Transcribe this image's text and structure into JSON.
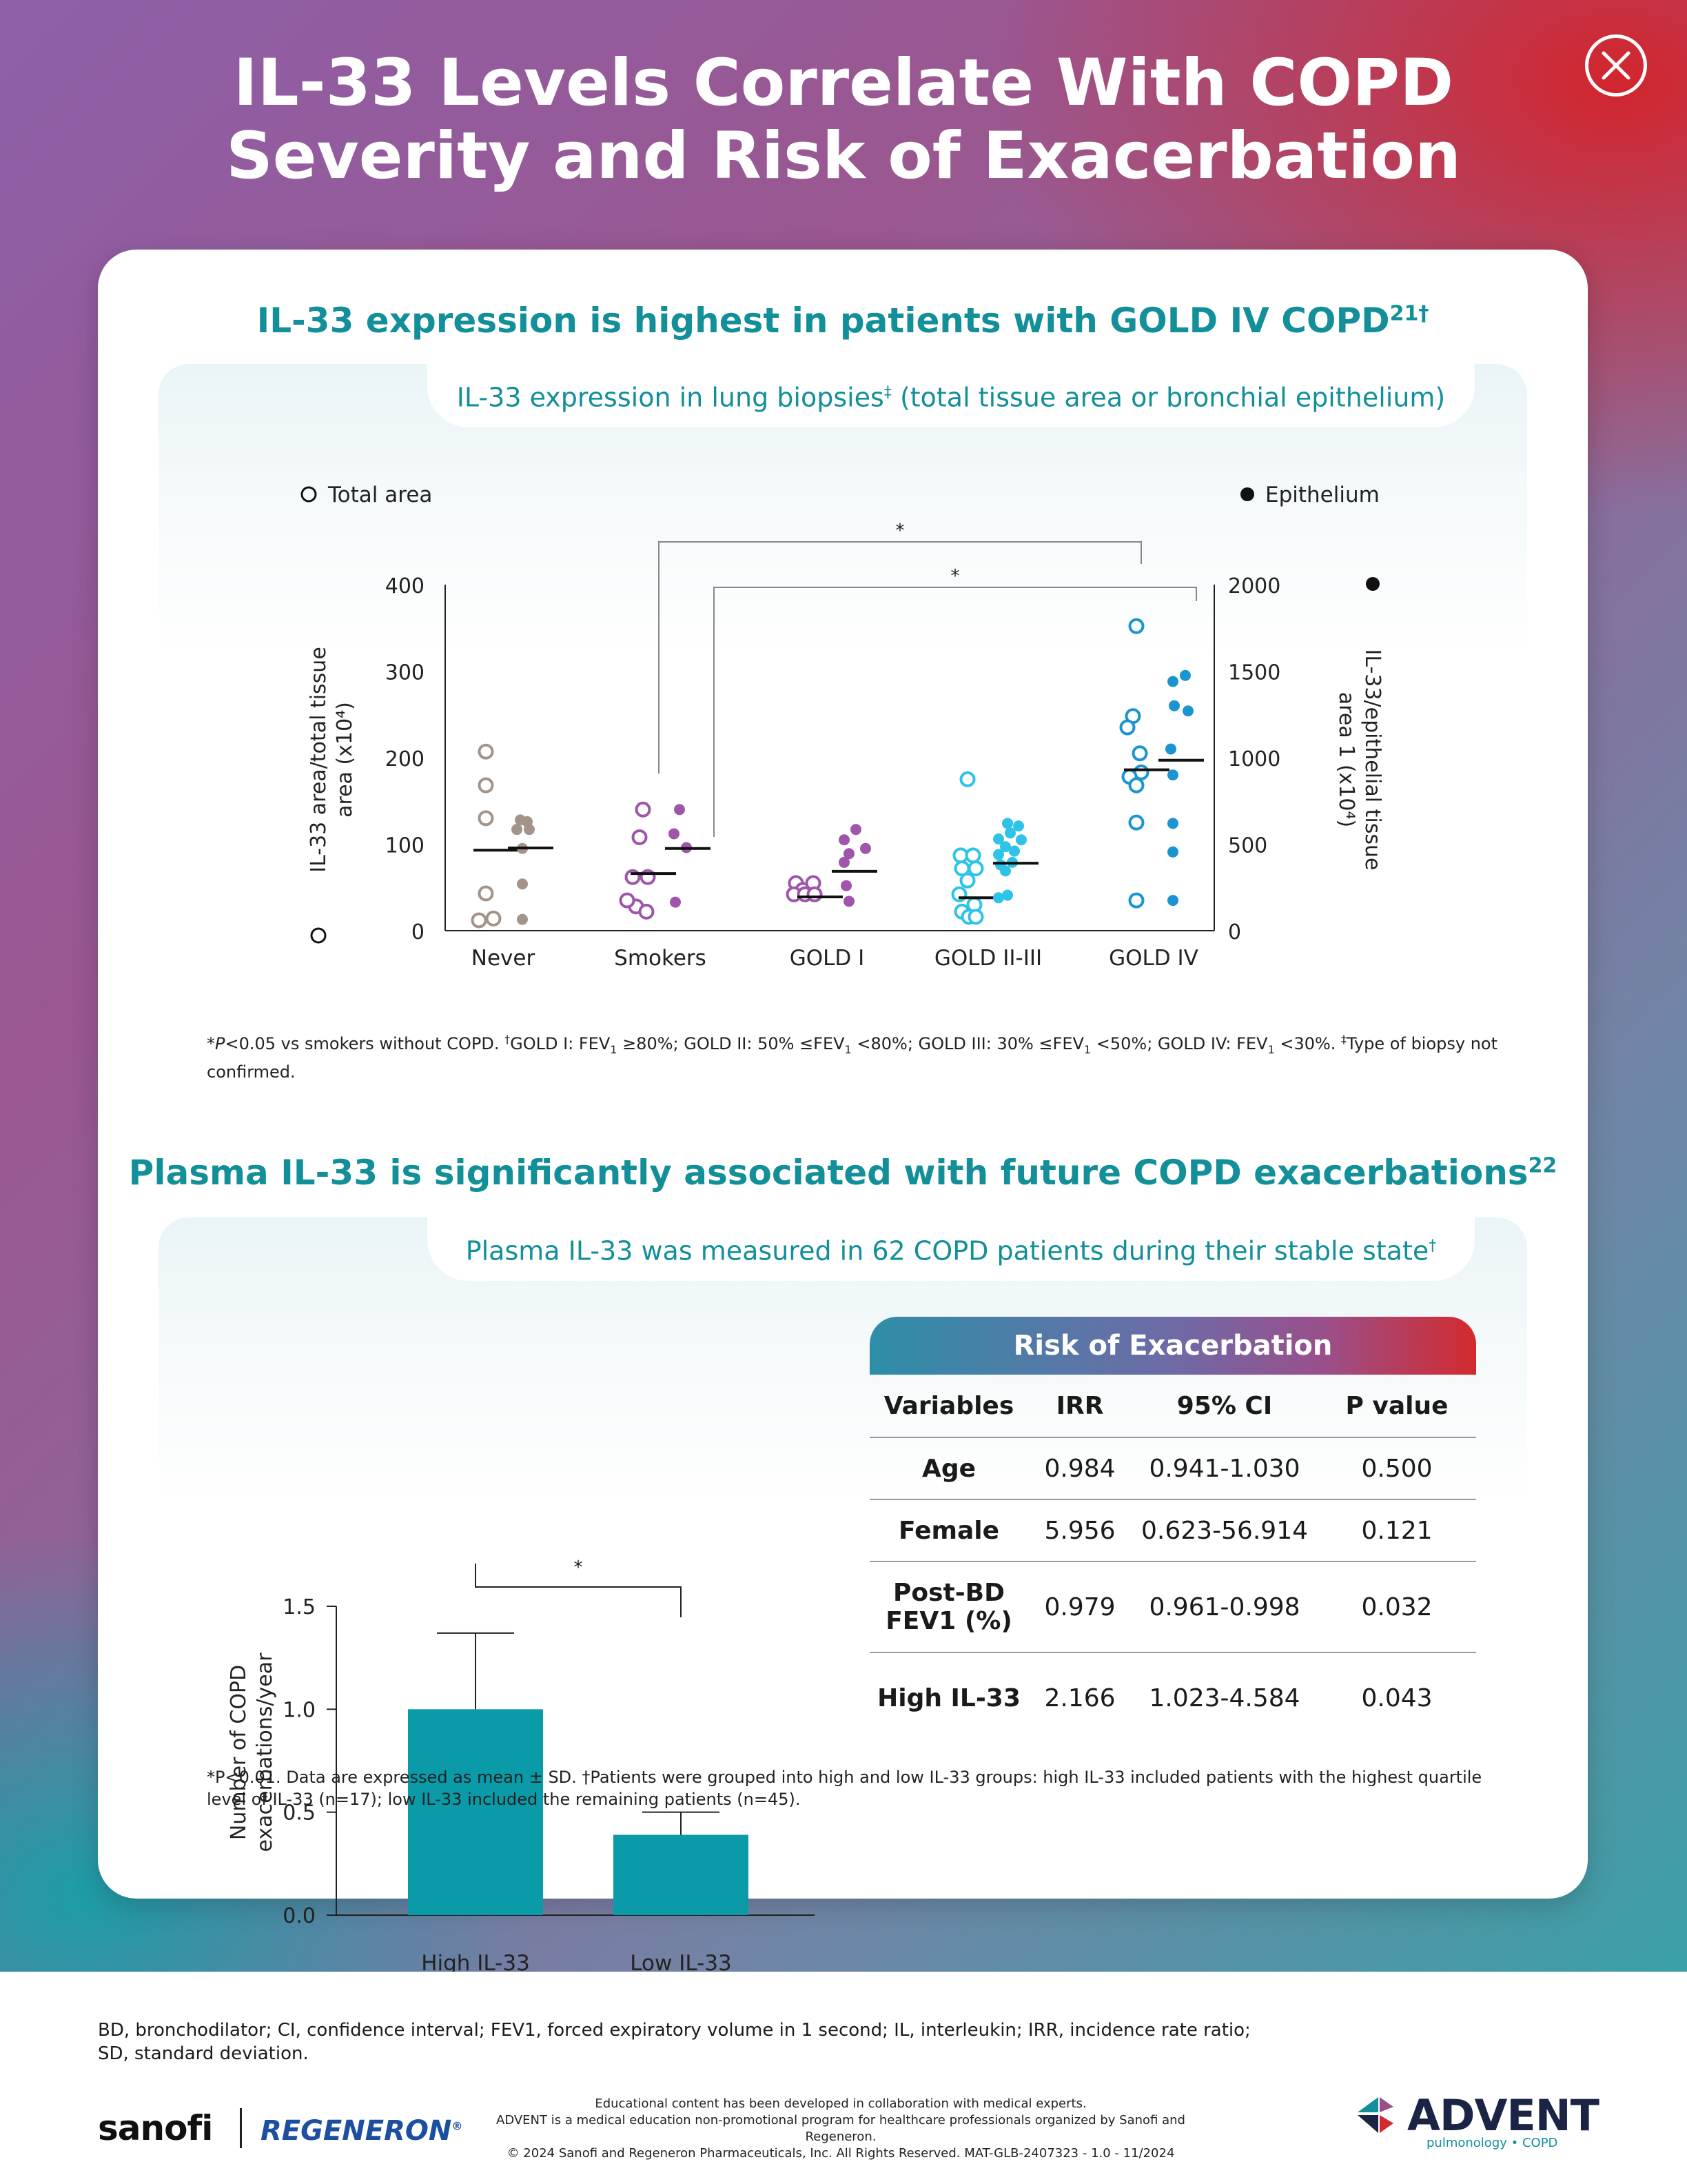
{
  "header": {
    "title_line1": "IL-33 Levels Correlate With COPD",
    "title_line2": "Severity and Risk of Exacerbation"
  },
  "section1": {
    "title": "IL-33 expression is highest in patients with GOLD IV COPD",
    "title_sup": "21†",
    "pill_text": "IL-33 expression in lung biopsies",
    "pill_sup": "‡",
    "pill_text2": " (total tissue area or bronchial epithelium)",
    "footnote": "*P<0.05 vs smokers without COPD. †GOLD I: FEV1 ≥80%; GOLD II: 50% ≤FEV1 <80%; GOLD III: 30% ≤FEV1 <50%; GOLD IV: FEV1 <30%. ‡Type of biopsy not confirmed."
  },
  "section2": {
    "title": "Plasma IL-33 is significantly associated with future COPD exacerbations",
    "title_sup": "22",
    "pill_text": "Plasma IL-33 was measured in 62 COPD patients during their stable state",
    "pill_sup": "†",
    "footnote_line1": "*P<0.01. Data are expressed as mean ± SD. †Patients were grouped into high and low IL-33 groups: high IL-33 included patients with the highest quartile",
    "footnote_line2": "level of IL-33 (n=17); low IL-33 included the remaining patients (n=45)."
  },
  "chart_data": [
    {
      "type": "scatter",
      "legend": [
        "Total area",
        "Epithelium"
      ],
      "categories": [
        "Never Smokers",
        "Smokers",
        "GOLD I",
        "GOLD II-III",
        "GOLD IV"
      ],
      "category_label_lines": [
        [
          "Never",
          "Smokers"
        ],
        [
          "Smokers"
        ],
        [
          "GOLD I"
        ],
        [
          "GOLD II-III"
        ],
        [
          "GOLD IV"
        ]
      ],
      "ylabel_left": "IL-33 area/total tissue area (x10⁴)",
      "ylabel_right": "IL-33/epithelial tissue area 1 (x10⁴)",
      "ylim_left": [
        0,
        400
      ],
      "yticks_left": [
        0,
        100,
        200,
        300,
        400
      ],
      "ylim_right": [
        0,
        2000
      ],
      "yticks_right": [
        0,
        500,
        1000,
        1500,
        2000
      ],
      "colors": [
        "#a39388",
        "#9e55aa",
        "#9e55aa",
        "#2ec3e8",
        "#1b95cf"
      ],
      "series": [
        {
          "name": "Total area",
          "axis": "left",
          "marker": "open",
          "points": [
            [
              [
                -15,
                207
              ],
              [
                -15,
                168
              ],
              [
                -15,
                130
              ],
              [
                -15,
                43
              ],
              [
                -25,
                12
              ],
              [
                -4,
                14
              ]
            ],
            [
              [
                -15,
                140
              ],
              [
                -20,
                108
              ],
              [
                -30,
                62
              ],
              [
                -8,
                62
              ],
              [
                -25,
                28
              ],
              [
                -10,
                22
              ],
              [
                -38,
                35
              ]
            ],
            [
              [
                -35,
                55
              ],
              [
                -25,
                47
              ],
              [
                -10,
                55
              ],
              [
                -38,
                42
              ],
              [
                -22,
                42
              ],
              [
                -8,
                42
              ]
            ],
            [
              [
                -20,
                175
              ],
              [
                -30,
                87
              ],
              [
                -12,
                87
              ],
              [
                -28,
                72
              ],
              [
                -8,
                72
              ],
              [
                -20,
                58
              ],
              [
                -32,
                42
              ],
              [
                -10,
                30
              ],
              [
                -28,
                22
              ],
              [
                -18,
                16
              ],
              [
                -8,
                16
              ]
            ],
            [
              [
                -15,
                352
              ],
              [
                -20,
                248
              ],
              [
                -28,
                235
              ],
              [
                -10,
                205
              ],
              [
                -8,
                183
              ],
              [
                -25,
                178
              ],
              [
                -15,
                168
              ],
              [
                -15,
                125
              ],
              [
                -15,
                35
              ]
            ]
          ],
          "medians": [
            93,
            66,
            39,
            38,
            186
          ]
        },
        {
          "name": "Epithelium",
          "axis": "right",
          "marker": "filled",
          "points": [
            [
              [
                -15,
                640
              ],
              [
                -5,
                630
              ],
              [
                -20,
                585
              ],
              [
                -2,
                585
              ],
              [
                -12,
                475
              ],
              [
                -12,
                270
              ],
              [
                -12,
                65
              ]
            ],
            [
              [
                -12,
                700
              ],
              [
                -20,
                560
              ],
              [
                -2,
                480
              ],
              [
                -18,
                165
              ]
            ],
            [
              [
                -15,
                525
              ],
              [
                2,
                585
              ],
              [
                -8,
                445
              ],
              [
                16,
                475
              ],
              [
                -15,
                395
              ],
              [
                -12,
                260
              ],
              [
                -8,
                170
              ]
            ],
            [
              [
                -12,
                620
              ],
              [
                4,
                605
              ],
              [
                -8,
                565
              ],
              [
                -25,
                530
              ],
              [
                8,
                525
              ],
              [
                -15,
                485
              ],
              [
                -25,
                440
              ],
              [
                -2,
                460
              ],
              [
                -22,
                380
              ],
              [
                -5,
                395
              ],
              [
                -15,
                345
              ],
              [
                -25,
                190
              ],
              [
                -12,
                205
              ]
            ],
            [
              [
                -12,
                1440
              ],
              [
                6,
                1475
              ],
              [
                -10,
                1300
              ],
              [
                10,
                1270
              ],
              [
                -15,
                1050
              ],
              [
                -12,
                900
              ],
              [
                -12,
                620
              ],
              [
                -12,
                455
              ],
              [
                -12,
                175
              ]
            ]
          ],
          "medians": [
            478,
            475,
            343,
            390,
            985
          ]
        }
      ],
      "significance": [
        {
          "from": "Smokers",
          "to": "GOLD IV",
          "label": "*"
        },
        {
          "from": "Smokers",
          "to": "GOLD IV",
          "label": "*"
        }
      ]
    },
    {
      "type": "bar",
      "categories": [
        "High IL-33",
        "Low IL-33"
      ],
      "values": [
        1.0,
        0.39
      ],
      "error_upper": [
        1.37,
        0.5
      ],
      "ylabel": "Number of COPD exacerbations/year",
      "ylim": [
        0,
        1.5
      ],
      "yticks": [
        "0.0",
        "0.5",
        "1.0",
        "1.5"
      ],
      "significance_label": "*",
      "color": "#0b9aa7"
    }
  ],
  "risk_table": {
    "title": "Risk of Exacerbation",
    "headers": [
      "Variables",
      "IRR",
      "95% CI",
      "P value"
    ],
    "rows": [
      {
        "variable": "Age",
        "irr": "0.984",
        "ci": "0.941-1.030",
        "p": "0.500"
      },
      {
        "variable": "Female",
        "irr": "5.956",
        "ci": "0.623-56.914",
        "p": "0.121"
      },
      {
        "variable": "Post-BD FEV1 (%)",
        "irr": "0.979",
        "ci": "0.961-0.998",
        "p": "0.032"
      },
      {
        "variable": "High IL-33",
        "irr": "2.166",
        "ci": "1.023-4.584",
        "p": "0.043"
      }
    ]
  },
  "footer": {
    "abbreviations_line1": "BD, bronchodilator; CI, confidence interval; FEV1, forced expiratory volume in 1 second; IL, interleukin; IRR, incidence rate ratio;",
    "abbreviations_line2": "SD, standard deviation.",
    "legal_line1": "Educational content has been developed in collaboration with medical experts.",
    "legal_line2": "ADVENT is a medical education non-promotional program for healthcare professionals organized by Sanofi and Regeneron.",
    "legal_line3": "© 2024 Sanofi and Regeneron Pharmaceuticals, Inc. All Rights Reserved. MAT-GLB-2407323 - 1.0 - 11/2024",
    "logo_sanofi": "sanofi",
    "logo_regeneron": "REGENERON",
    "logo_advent": "ADVENT",
    "logo_advent_sub": "pulmonology • COPD"
  }
}
